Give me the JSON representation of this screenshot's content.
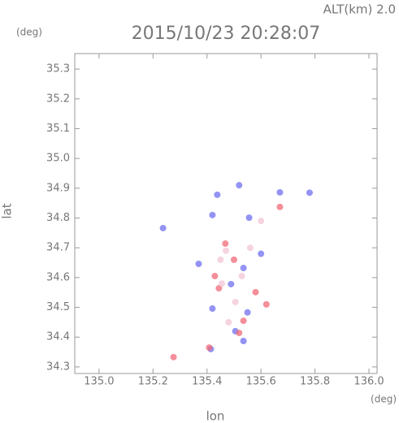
{
  "chart_data": {
    "type": "scatter",
    "title": "2015/10/23 20:28:07",
    "subtitle": "ALT(km) 2.0",
    "y_unit": "(deg)",
    "x_unit": "(deg)",
    "xlabel": "lon",
    "ylabel": "lat",
    "xlim": [
      134.91,
      136.03
    ],
    "ylim": [
      34.278,
      35.352
    ],
    "xticks": [
      {
        "value": 135.0,
        "label": "135.0"
      },
      135.2,
      135.4,
      135.6,
      135.8,
      {
        "value": 136.0,
        "label": "136.0"
      }
    ],
    "yticks": [
      35.3,
      35.2,
      35.1,
      {
        "value": 35.0,
        "label": "35.0"
      },
      34.9,
      34.8,
      34.7,
      34.6,
      34.5,
      34.4,
      34.3
    ],
    "series": [
      {
        "color": "#6f6ff0",
        "x": [
          135.438,
          135.519,
          135.42,
          135.237,
          135.535,
          135.369,
          135.489,
          135.55,
          135.505,
          135.414,
          135.67,
          135.556,
          135.42,
          135.535,
          135.78,
          135.6
        ],
        "y": [
          34.878,
          34.91,
          34.81,
          34.766,
          34.632,
          34.646,
          34.578,
          34.483,
          34.42,
          34.36,
          34.886,
          34.801,
          34.496,
          34.387,
          34.885,
          34.68
        ]
      },
      {
        "color": "#f06a78",
        "x": [
          135.468,
          135.444,
          135.58,
          135.408,
          135.276,
          135.67,
          135.519,
          135.429,
          135.535,
          135.5,
          135.62
        ],
        "y": [
          34.714,
          34.564,
          34.551,
          34.365,
          34.333,
          34.837,
          34.414,
          34.605,
          34.455,
          34.66,
          34.51
        ]
      },
      {
        "color": "#f3c4d6",
        "x": [
          135.45,
          135.529,
          135.505,
          135.47,
          135.56,
          135.48,
          135.6,
          135.455
        ],
        "y": [
          34.66,
          34.605,
          34.518,
          34.69,
          34.7,
          34.45,
          34.79,
          34.58
        ]
      }
    ]
  }
}
